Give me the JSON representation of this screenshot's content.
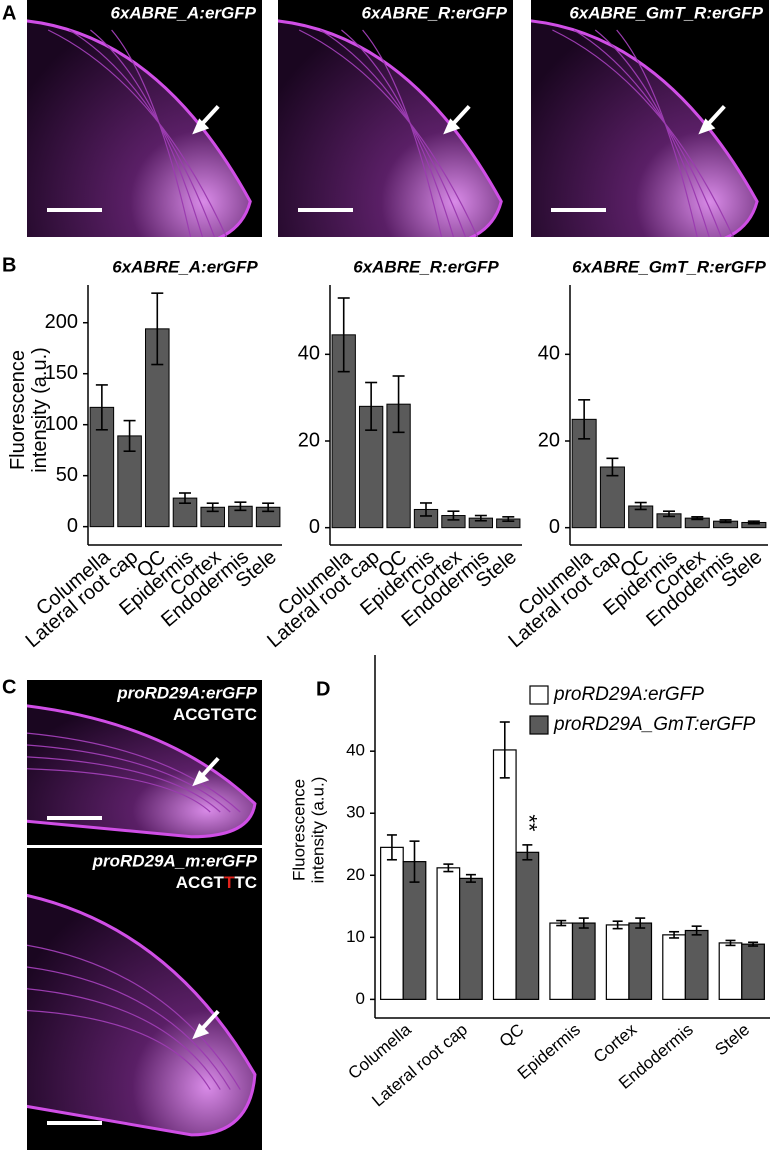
{
  "panel_labels": [
    "A",
    "B",
    "C",
    "D"
  ],
  "images_a": [
    {
      "title": "6xABRE_A:erGFP"
    },
    {
      "title": "6xABRE_R:erGFP"
    },
    {
      "title": "6xABRE_GmT_R:erGFP"
    }
  ],
  "images_c": [
    {
      "title": "proRD29A:erGFP",
      "sequence": [
        "ACGTGTC"
      ]
    },
    {
      "title": "proRD29A_m:erGFP",
      "sequence": [
        "ACGT",
        "T",
        "TC"
      ],
      "sequence_colors": [
        "#ffffff",
        "#e0231c",
        "#ffffff"
      ]
    }
  ],
  "chart_data": [
    {
      "type": "bar",
      "title": "6xABRE_A:erGFP",
      "y_label_lines": [
        "Fluorescence",
        "intensity (a.u.)"
      ],
      "categories": [
        "Columella",
        "Lateral root cap",
        "QC",
        "Epidermis",
        "Cortex",
        "Endodermis",
        "Stele"
      ],
      "values": [
        117,
        89,
        194,
        28,
        19,
        20,
        19
      ],
      "errors": [
        22,
        15,
        35,
        5,
        4,
        4,
        4
      ],
      "color": "#5a5a5a",
      "ylim": [
        -18,
        237
      ],
      "yticks": [
        0,
        50,
        100,
        150,
        200
      ],
      "grid": false
    },
    {
      "type": "bar",
      "title": "6xABRE_R:erGFP",
      "categories": [
        "Columella",
        "Lateral root cap",
        "QC",
        "Epidermis",
        "Cortex",
        "Endodermis",
        "Stele"
      ],
      "values": [
        44.5,
        28,
        28.5,
        4.2,
        2.8,
        2.2,
        2.0
      ],
      "errors": [
        8.5,
        5.5,
        6.5,
        1.5,
        1,
        0.6,
        0.5
      ],
      "color": "#5a5a5a",
      "ylim": [
        -4,
        56
      ],
      "yticks": [
        0,
        20,
        40
      ],
      "grid": false
    },
    {
      "type": "bar",
      "title": "6xABRE_GmT_R:erGFP",
      "categories": [
        "Columella",
        "Lateral root cap",
        "QC",
        "Epidermis",
        "Cortex",
        "Endodermis",
        "Stele"
      ],
      "values": [
        25,
        14,
        5,
        3.2,
        2.2,
        1.5,
        1.2
      ],
      "errors": [
        4.5,
        2,
        0.8,
        0.6,
        0.3,
        0.3,
        0.3
      ],
      "color": "#5a5a5a",
      "ylim": [
        -4,
        56
      ],
      "yticks": [
        0,
        20,
        40
      ],
      "grid": false
    },
    {
      "type": "grouped_bar",
      "y_label_lines": [
        "Fluorescence",
        "intensity (a.u.)"
      ],
      "categories": [
        "Columella",
        "Lateral root cap",
        "QC",
        "Epidermis",
        "Cortex",
        "Endodermis",
        "Stele"
      ],
      "series": [
        {
          "name": "proRD29A:erGFP",
          "color": "#ffffff",
          "values": [
            24.5,
            21.2,
            40.2,
            12.3,
            12,
            10.4,
            9.1
          ],
          "errors": [
            2,
            0.6,
            4.5,
            0.4,
            0.6,
            0.5,
            0.4
          ]
        },
        {
          "name": "proRD29A_GmT:erGFP",
          "color": "#5a5a5a",
          "values": [
            22.2,
            19.5,
            23.7,
            12.3,
            12.3,
            11.1,
            8.9
          ],
          "errors": [
            3.3,
            0.6,
            1.2,
            0.8,
            0.8,
            0.7,
            0.3
          ]
        }
      ],
      "annotation": "**",
      "ylim": [
        -3,
        55.5
      ],
      "yticks": [
        0,
        10,
        20,
        30,
        40
      ],
      "grid": false,
      "legend": "top-right"
    }
  ]
}
